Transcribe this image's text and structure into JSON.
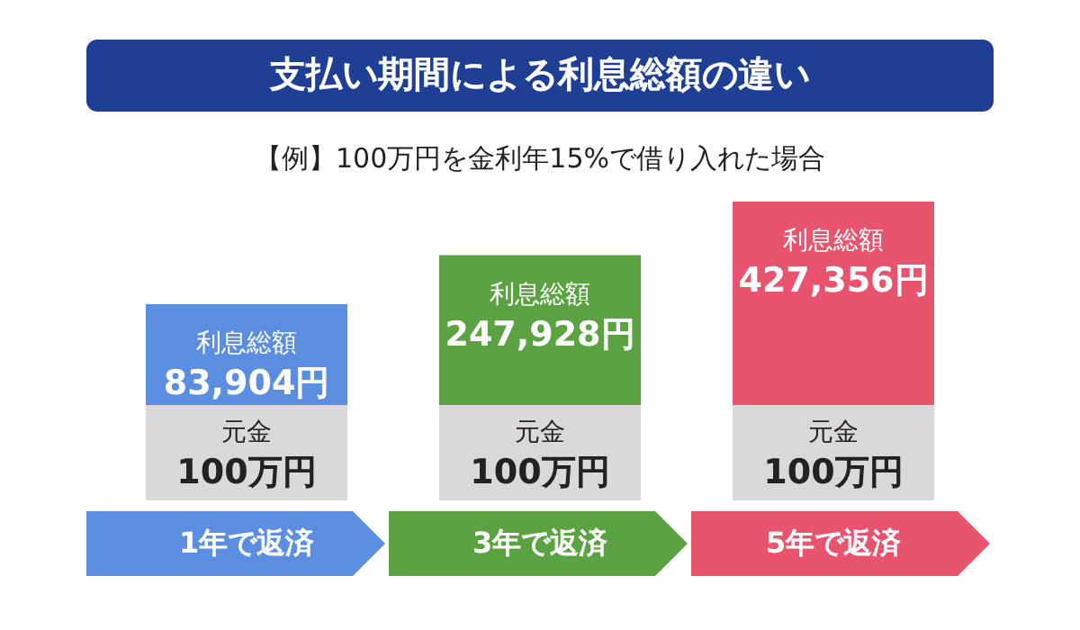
{
  "chart_data": {
    "type": "other",
    "title": "支払い期間による利息総額の違い",
    "subtitle": "【例】100万円を金利年15%で借り入れた場合",
    "categories": [
      "1年で返済",
      "3年で返済",
      "5年で返済"
    ],
    "colors": [
      "#5b8de0",
      "#5ba243",
      "#e8546e"
    ],
    "series": [
      {
        "name": "元金",
        "color": "#d9d9d9",
        "values": [
          100,
          100,
          100
        ],
        "value_labels": [
          "100万円",
          "100万円",
          "100万円"
        ]
      },
      {
        "name": "利息総額",
        "colors": [
          "#5b8de0",
          "#5ba243",
          "#e8546e"
        ],
        "values": [
          83904,
          247928,
          427356
        ],
        "value_labels": [
          "83,904円",
          "247,928円",
          "427,356円"
        ]
      }
    ]
  }
}
